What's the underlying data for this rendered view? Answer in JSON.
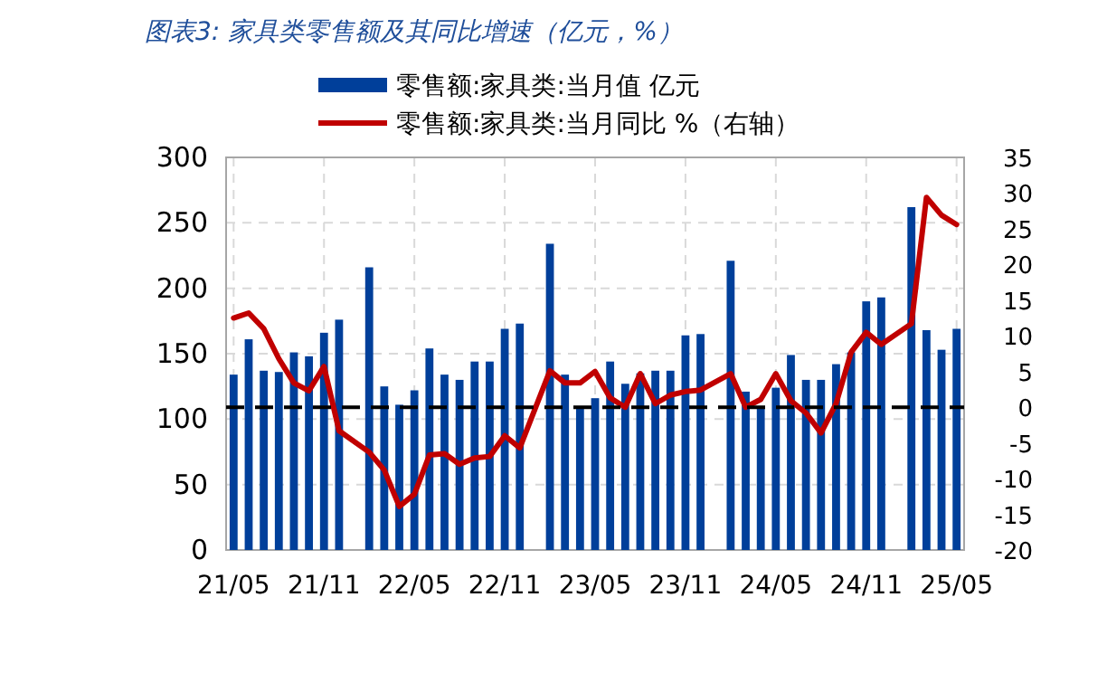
{
  "chart_data": {
    "type": "bar",
    "title": "图表3:  家具类零售额及其同比增速（亿元，%）",
    "categories": [
      "21/05",
      null,
      null,
      null,
      null,
      null,
      "21/11",
      null,
      null,
      null,
      null,
      null,
      "22/05",
      null,
      null,
      null,
      null,
      null,
      "22/11",
      null,
      null,
      null,
      null,
      null,
      "23/05",
      null,
      null,
      null,
      null,
      null,
      "23/11",
      null,
      null,
      null,
      null,
      null,
      "24/05",
      null,
      null,
      null,
      null,
      null,
      "24/11",
      null,
      null,
      null,
      null,
      null,
      "25/05"
    ],
    "series": [
      {
        "name": "零售额:家具类:当月值 亿元",
        "color": "#003f9a",
        "values": [
          134,
          161,
          137,
          136,
          151,
          148,
          166,
          176,
          null,
          216,
          125,
          111,
          122,
          154,
          134,
          130,
          144,
          144,
          169,
          173,
          null,
          234,
          134,
          109,
          116,
          144,
          127,
          135,
          137,
          137,
          164,
          165,
          null,
          221,
          121,
          109,
          124,
          149,
          130,
          130,
          142,
          151,
          190,
          193,
          null,
          262,
          168,
          153,
          169
        ]
      },
      {
        "name": "零售额:家具类:当月同比 %（右轴）",
        "type": "line",
        "axis": "y2",
        "color": "#c00000",
        "values": [
          12.5,
          13.2,
          11,
          6.8,
          3.4,
          2.3,
          5.7,
          -3.3,
          null,
          -6.3,
          -8.8,
          -13.9,
          -12.2,
          -6.7,
          -6.5,
          -8,
          -7.1,
          -6.9,
          -4,
          -5.7,
          null,
          5.1,
          3.4,
          3.4,
          5,
          1.3,
          0,
          4.7,
          0.5,
          1.7,
          2.2,
          2.4,
          null,
          4.7,
          0,
          1.1,
          4.7,
          0.9,
          -0.8,
          -3.6,
          0.5,
          7.7,
          10.5,
          8.8,
          null,
          11.7,
          29.4,
          26.9,
          25.6
        ]
      }
    ],
    "ylim": [
      0,
      300
    ],
    "yticks": [
      0,
      50,
      100,
      150,
      200,
      250,
      300
    ],
    "y2lim": [
      -20,
      35
    ],
    "y2ticks": [
      -20,
      -15,
      -10,
      -5,
      0,
      5,
      10,
      15,
      20,
      25,
      30,
      35
    ],
    "ref_lines": [
      {
        "axis": "y2",
        "value": 0,
        "color": "#000000",
        "line_style": "dashed"
      }
    ],
    "grid": true,
    "legend": "top"
  }
}
